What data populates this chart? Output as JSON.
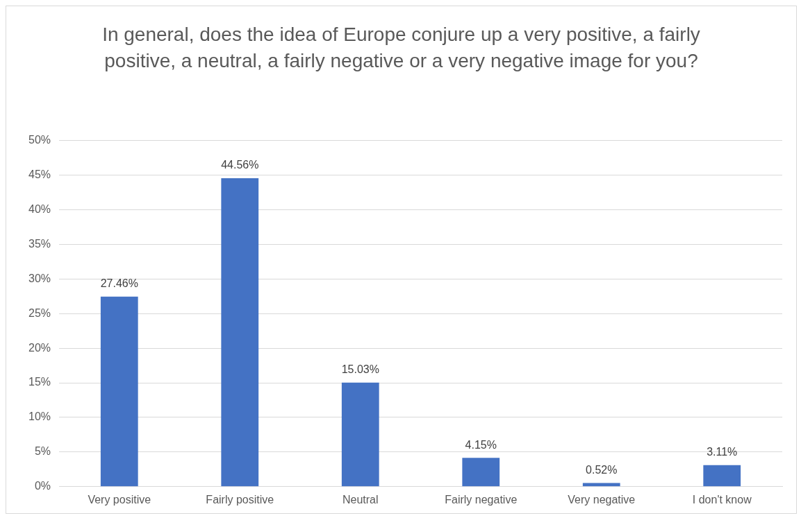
{
  "chart_data": {
    "type": "bar",
    "title": "In general, does the idea of Europe conjure up a very positive, a fairly positive, a neutral, a fairly negative or a very negative image for you?",
    "categories": [
      "Very positive",
      "Fairly positive",
      "Neutral",
      "Fairly negative",
      "Very negative",
      "I don't know"
    ],
    "values": [
      27.46,
      44.56,
      15.03,
      4.15,
      0.52,
      3.11
    ],
    "value_labels": [
      "27.46%",
      "44.56%",
      "15.03%",
      "4.15%",
      "0.52%",
      "3.11%"
    ],
    "color": "#4472c4",
    "ylim": [
      0,
      50
    ],
    "yticks": [
      {
        "value": 0,
        "label": "0%"
      },
      {
        "value": 5,
        "label": "5%"
      },
      {
        "value": 10,
        "label": "10%"
      },
      {
        "value": 15,
        "label": "15%"
      },
      {
        "value": 20,
        "label": "20%"
      },
      {
        "value": 25,
        "label": "25%"
      },
      {
        "value": 30,
        "label": "30%"
      },
      {
        "value": 35,
        "label": "35%"
      },
      {
        "value": 40,
        "label": "40%"
      },
      {
        "value": 45,
        "label": "45%"
      },
      {
        "value": 50,
        "label": "50%"
      }
    ],
    "grid": "y"
  }
}
